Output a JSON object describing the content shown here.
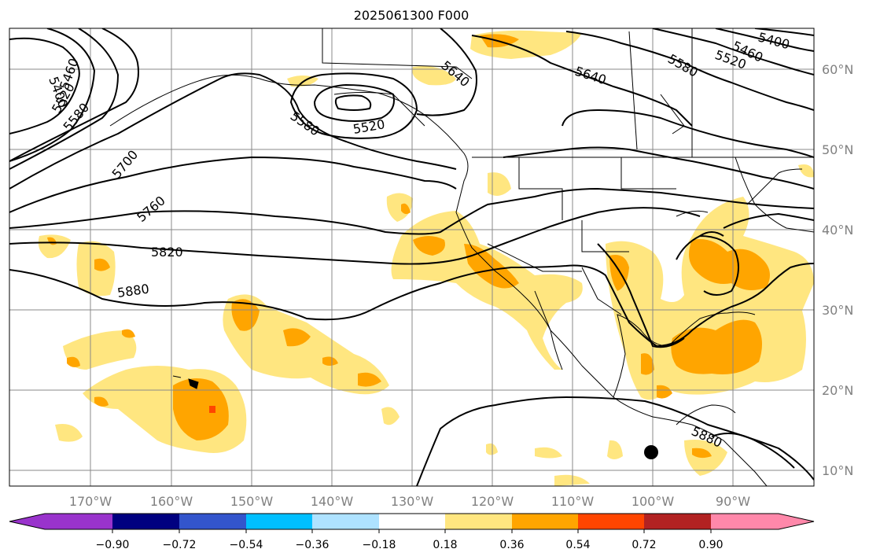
{
  "title": "2025061300 F000",
  "lon_ticks": [
    "170°W",
    "160°W",
    "150°W",
    "140°W",
    "130°W",
    "120°W",
    "110°W",
    "100°W",
    "90°W"
  ],
  "lat_ticks": [
    "60°N",
    "50°N",
    "40°N",
    "30°N",
    "20°N",
    "10°N"
  ],
  "contour_labels": [
    "5400",
    "5460",
    "5520",
    "5580",
    "5640",
    "5700",
    "5760",
    "5820",
    "5880",
    "5400",
    "5460",
    "5520",
    "5580",
    "5640",
    "5520",
    "5580",
    "5880"
  ],
  "colorbar": {
    "ticks": [
      "−0.90",
      "−0.72",
      "−0.54",
      "−0.36",
      "−0.18",
      "0.18",
      "0.36",
      "0.54",
      "0.72",
      "0.90"
    ],
    "colors": [
      "#9933cc",
      "#000080",
      "#3355cc",
      "#00bfff",
      "#aee2ff",
      "#ffffff",
      "#ffe680",
      "#ffa500",
      "#ff4500",
      "#b22222",
      "#ff88aa"
    ]
  },
  "map_colors": {
    "light": "#ffe680",
    "mid": "#ffa500",
    "high": "#ff4500",
    "grid": "#888888",
    "contour": "#000000",
    "marker": "#000000"
  }
}
